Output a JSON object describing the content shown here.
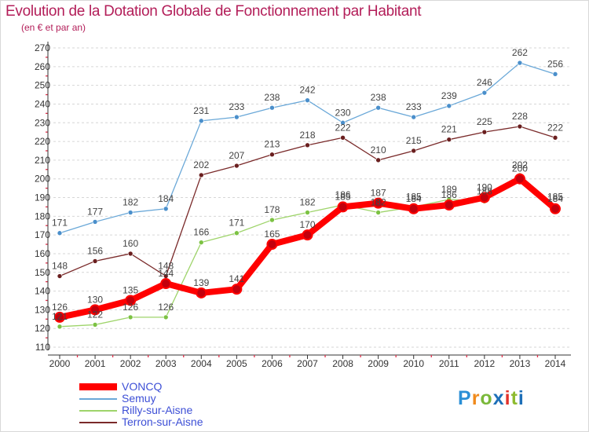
{
  "title": "Evolution de la Dotation Globale de Fonctionnement par Habitant",
  "subtitle": "(en € et par an)",
  "logo_text": "Proxiti",
  "chart_data": {
    "type": "line",
    "title": "Evolution de la Dotation Globale de Fonctionnement par Habitant",
    "subtitle": "(en € et par an)",
    "x": [
      "2000",
      "2001",
      "2002",
      "2003",
      "2004",
      "2005",
      "2006",
      "2007",
      "2008",
      "2009",
      "2010",
      "2011",
      "2012",
      "2013",
      "2014"
    ],
    "ylim": [
      110,
      270
    ],
    "yticks": [
      110,
      120,
      130,
      140,
      150,
      160,
      170,
      180,
      190,
      200,
      210,
      220,
      230,
      240,
      250,
      260,
      270
    ],
    "grid": "dashed-horizontal",
    "legend_position": "bottom-left",
    "series": [
      {
        "name": "VONCQ",
        "color": "#ff0000",
        "point_color": "#c2000d",
        "highlight": true,
        "values": [
          126,
          130,
          135,
          144,
          139,
          141,
          165,
          170,
          185,
          187,
          184,
          186,
          190,
          200,
          184
        ]
      },
      {
        "name": "Semuy",
        "color": "#6aa8d8",
        "point_color": "#4a8fcb",
        "values": [
          171,
          177,
          182,
          184,
          231,
          233,
          238,
          242,
          230,
          238,
          233,
          239,
          246,
          262,
          256
        ]
      },
      {
        "name": "Rilly-sur-Aisne",
        "color": "#9ed46a",
        "point_color": "#7cc243",
        "values": [
          121,
          122,
          126,
          126,
          166,
          171,
          178,
          182,
          186,
          182,
          185,
          189,
          188,
          202,
          185
        ]
      },
      {
        "name": "Terron-sur-Aisne",
        "color": "#7a2a2a",
        "point_color": "#6a1f1f",
        "values": [
          148,
          156,
          160,
          148,
          202,
          207,
          213,
          218,
          222,
          210,
          215,
          221,
          225,
          228,
          222
        ]
      }
    ],
    "data_labels": [
      {
        "series": 0,
        "text": [
          "126",
          "130",
          "135",
          "144",
          "139",
          "141",
          "165",
          "170",
          "185",
          "187",
          "184",
          "186",
          "190",
          "200",
          "184"
        ]
      },
      {
        "series": 1,
        "text": [
          "171",
          "177",
          "182",
          "184",
          "231",
          "233",
          "238",
          "242",
          "230",
          "238",
          "233",
          "239",
          "246",
          "262",
          "256"
        ]
      },
      {
        "series": 2,
        "text": [
          "121",
          "122",
          "126",
          "126",
          "166",
          "171",
          "178",
          "182",
          "186",
          "182",
          "185",
          "189",
          "188",
          "202",
          "185"
        ]
      },
      {
        "series": 3,
        "text": [
          "148",
          "156",
          "160",
          "148",
          "202",
          "207",
          "213",
          "218",
          "222",
          "210",
          "215",
          "221",
          "225",
          "228",
          "222"
        ]
      }
    ]
  }
}
